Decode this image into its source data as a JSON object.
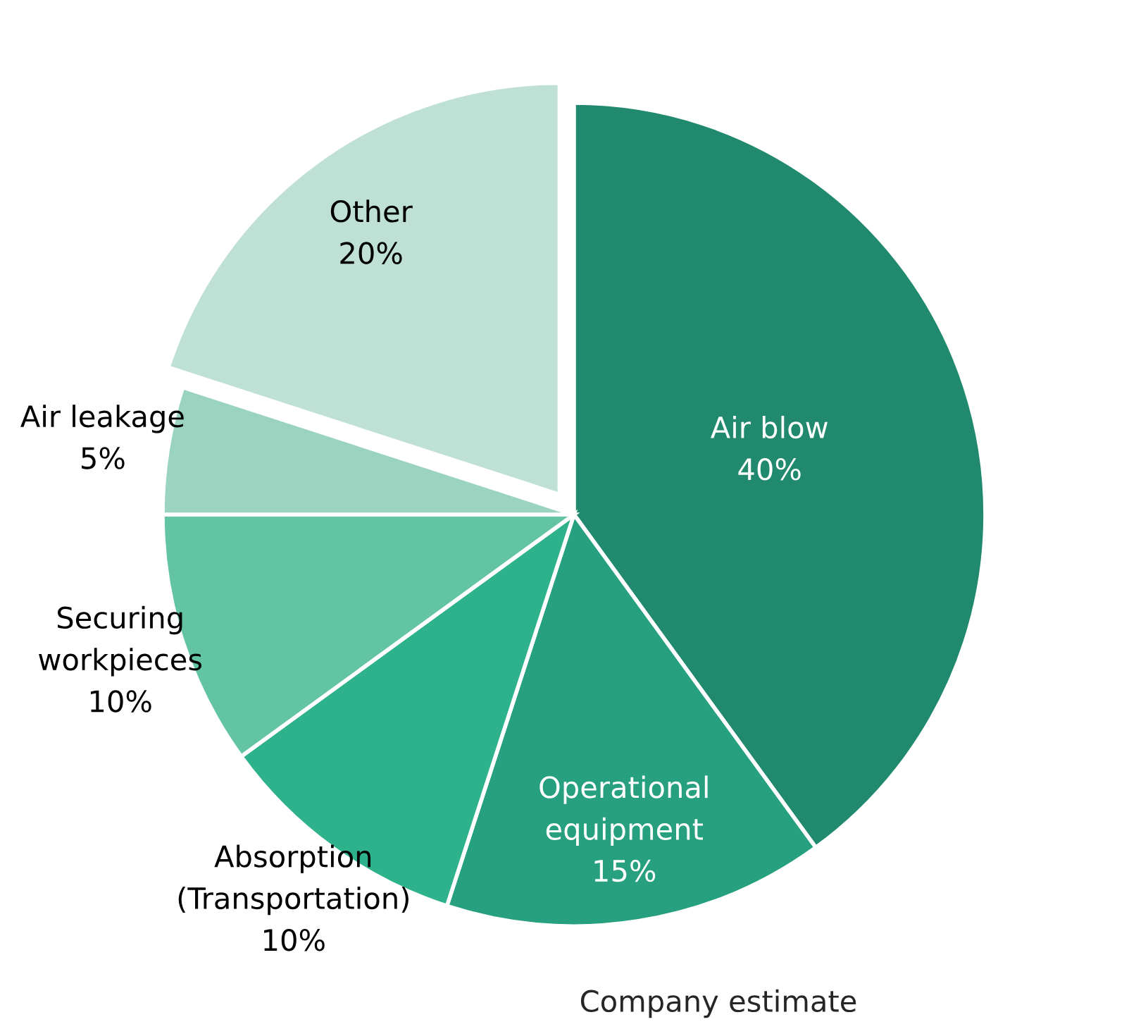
{
  "chart_data": {
    "type": "pie",
    "categories": [
      "Air blow",
      "Operational\nequipment",
      "Absorption\n(Transportation)",
      "Securing\nworkpieces",
      "Air leakage",
      "Other"
    ],
    "values": [
      40,
      15,
      10,
      10,
      5,
      20
    ],
    "value_labels": [
      "40%",
      "15%",
      "10%",
      "10%",
      "5%",
      "20%"
    ],
    "colors": [
      "#21896d",
      "#27a07f",
      "#2db28c",
      "#63c4a4",
      "#9ad3bf",
      "#bfe0d4"
    ],
    "annotations": [
      "Company estimate"
    ]
  }
}
